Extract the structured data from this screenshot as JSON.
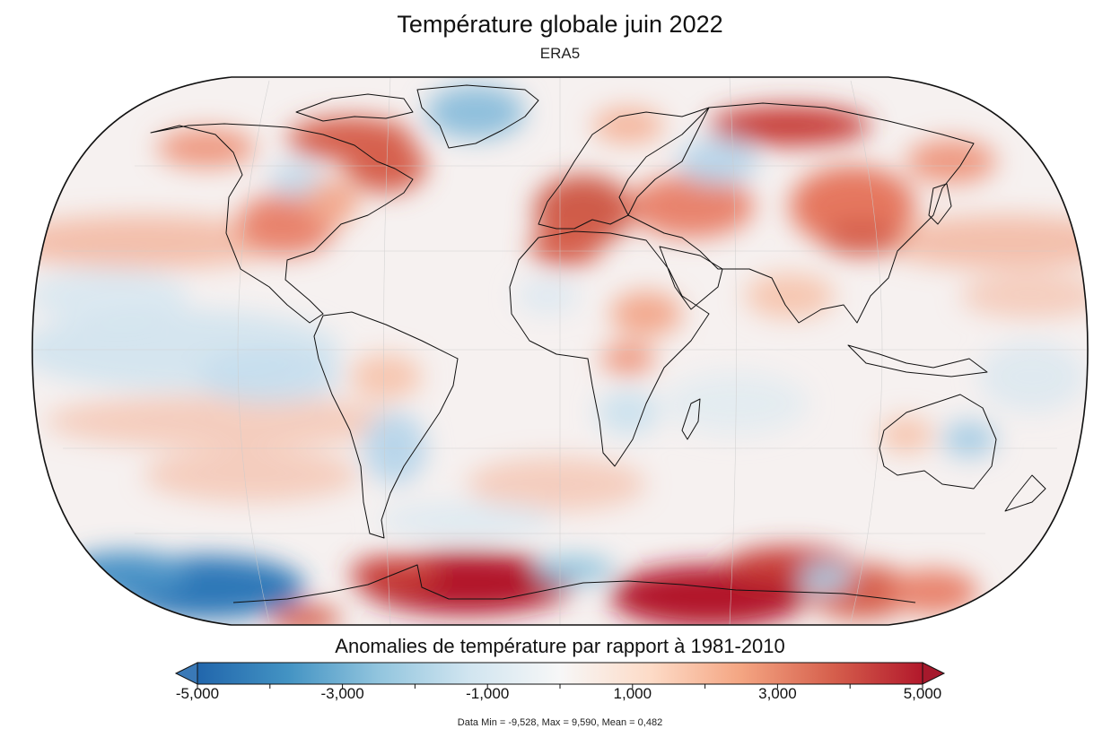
{
  "title": "Température globale juin 2022",
  "subtitle": "ERA5",
  "colorbar": {
    "label": "Anomalies de température par rapport à 1981-2010",
    "ticks": [
      {
        "value": -5,
        "label": "-5,000"
      },
      {
        "value": -3,
        "label": "-3,000"
      },
      {
        "value": -1,
        "label": "-1,000"
      },
      {
        "value": 1,
        "label": "1,000"
      },
      {
        "value": 3,
        "label": "3,000"
      },
      {
        "value": 5,
        "label": "5,000"
      }
    ],
    "range": [
      -5,
      5
    ],
    "colors": [
      "#2166ac",
      "#4393c3",
      "#92c5de",
      "#d1e5f0",
      "#f7f7f7",
      "#fddbc7",
      "#f4a582",
      "#d6604d",
      "#b2182b"
    ]
  },
  "stats": "Data Min = -9,528, Max = 9,590, Mean = 0,482",
  "colors": {
    "land_outline": "#111111",
    "ocean_base": "#f4f0ef",
    "warm": "#d6604d",
    "hot": "#b2182b",
    "cool": "#92c5de",
    "cold": "#2166ac"
  }
}
